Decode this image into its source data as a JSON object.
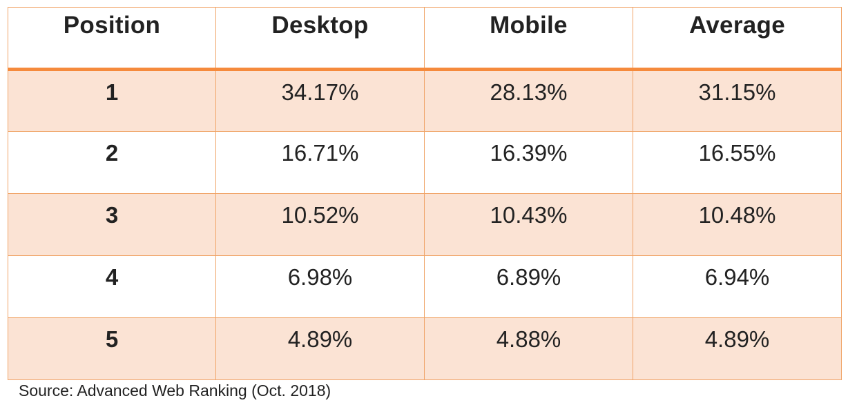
{
  "table": {
    "headers": [
      "Position",
      "Desktop",
      "Mobile",
      "Average"
    ],
    "rows": [
      [
        "1",
        "34.17%",
        "28.13%",
        "31.15%"
      ],
      [
        "2",
        "16.71%",
        "16.39%",
        "16.55%"
      ],
      [
        "3",
        "10.52%",
        "10.43%",
        "10.48%"
      ],
      [
        "4",
        "6.98%",
        "6.89%",
        "6.94%"
      ],
      [
        "5",
        "4.89%",
        "4.88%",
        "4.89%"
      ]
    ]
  },
  "source": "Source: Advanced Web Ranking (Oct. 2018)",
  "colors": {
    "border": "#f0a366",
    "header_rule": "#f58a3c",
    "row_shade": "#fbe3d4"
  }
}
